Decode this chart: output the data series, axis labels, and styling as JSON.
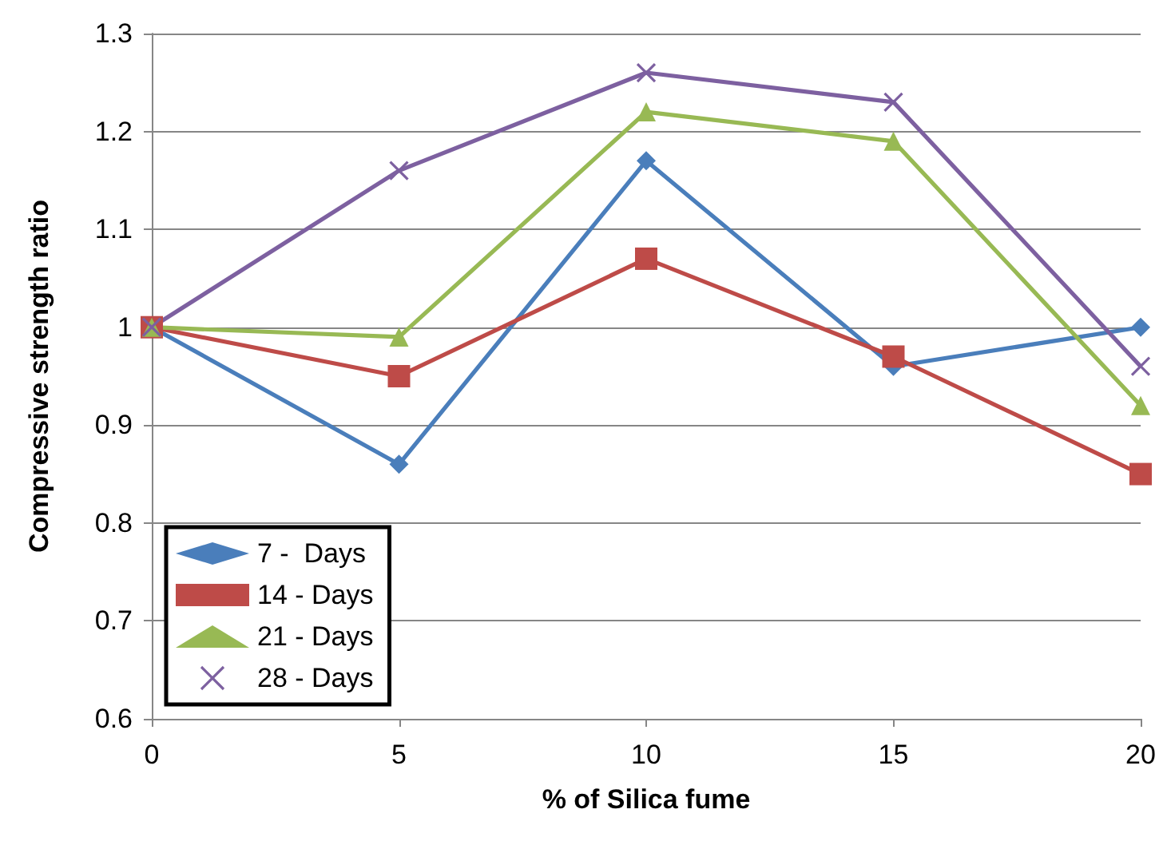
{
  "chart_data": {
    "type": "line",
    "xlabel": "% of Silica fume",
    "ylabel": "Compressive strength ratio",
    "x": [
      0,
      5,
      10,
      15,
      20
    ],
    "series": [
      {
        "name": "7 -  Days",
        "color": "#4a7ebb",
        "marker": "diamond",
        "values": [
          1,
          0.86,
          1.17,
          0.96,
          1.0
        ]
      },
      {
        "name": "14 - Days",
        "color": "#be4b48",
        "marker": "square",
        "values": [
          1,
          0.95,
          1.07,
          0.97,
          0.85
        ]
      },
      {
        "name": "21 - Days",
        "color": "#98b954",
        "marker": "triangle",
        "values": [
          1,
          0.99,
          1.22,
          1.19,
          0.92
        ]
      },
      {
        "name": "28 - Days",
        "color": "#7d60a0",
        "marker": "cross",
        "values": [
          1,
          1.16,
          1.26,
          1.23,
          0.96
        ]
      }
    ],
    "xlim": [
      0,
      20
    ],
    "xticks": [
      0,
      5,
      10,
      15,
      20
    ],
    "ylim": [
      0.6,
      1.3
    ],
    "yticks": [
      0.6,
      0.7,
      0.8,
      0.9,
      1,
      1.1,
      1.2,
      1.3
    ],
    "grid": "y",
    "legend": "bottom left",
    "line_style": "solid"
  }
}
